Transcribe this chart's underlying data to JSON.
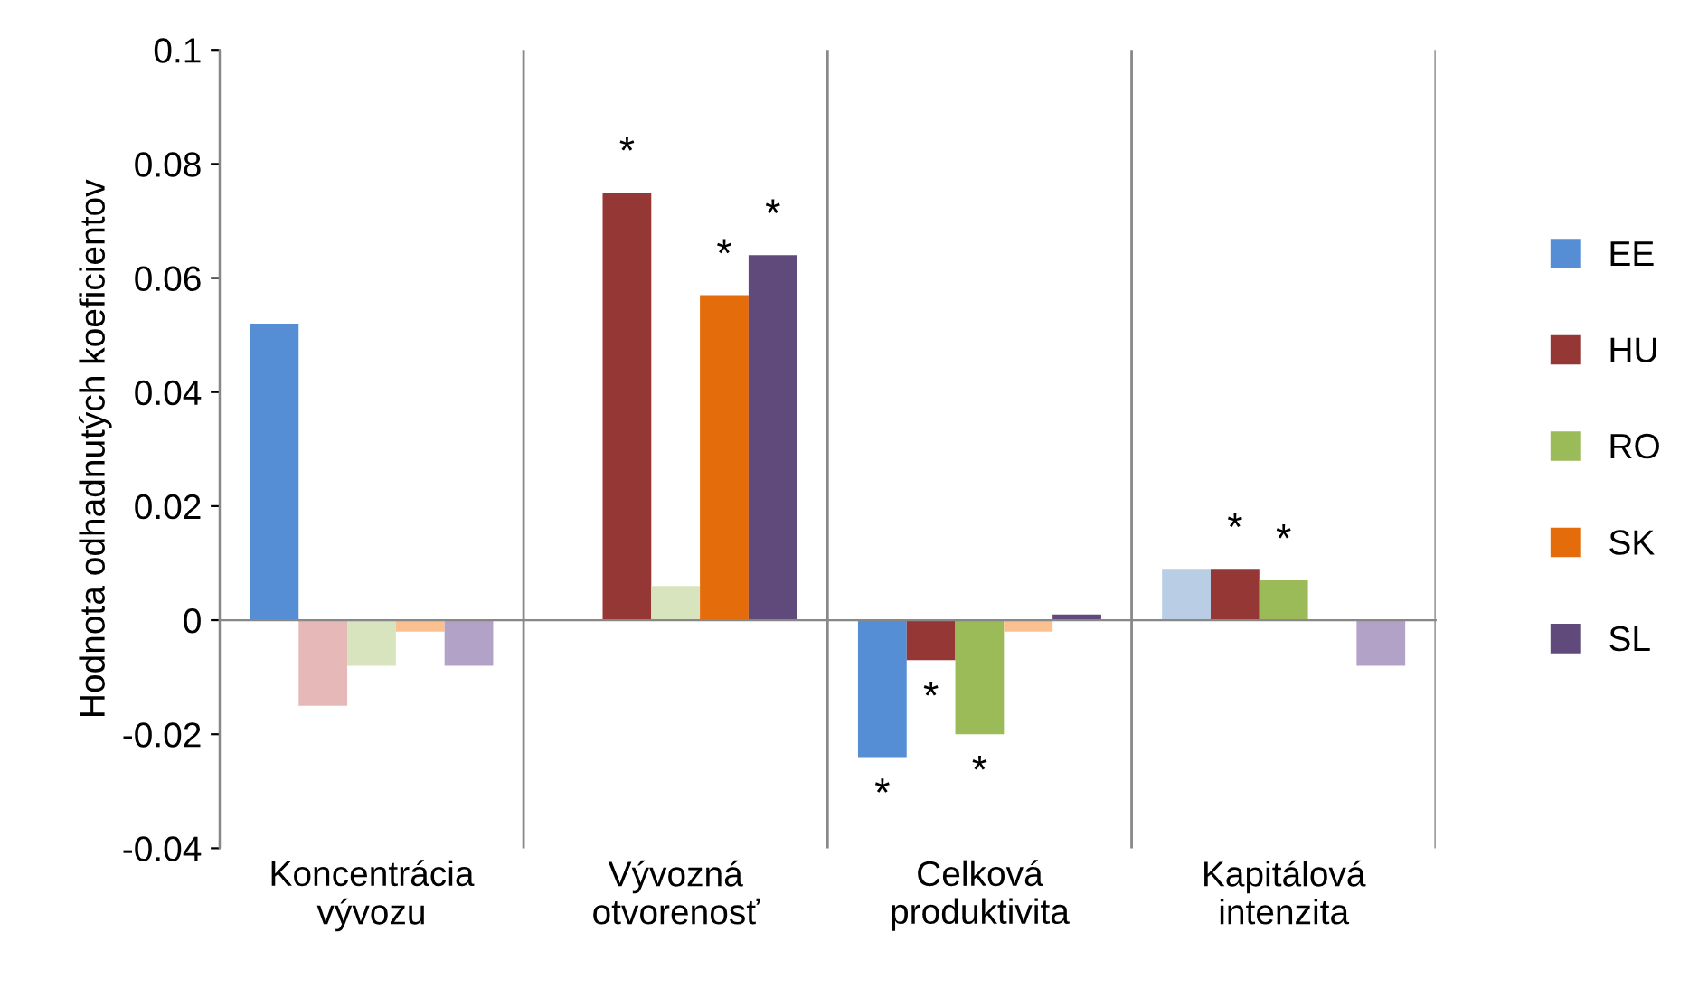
{
  "chart_data": {
    "type": "bar",
    "ylabel": "Hodnota odhadnutých koeficientov",
    "categories": [
      "Koncentrácia\nvývozu",
      "Vývozná\notvorenosť",
      "Celková\nproduktivita",
      "Kapitálová\nintenzita"
    ],
    "series": [
      {
        "name": "EE",
        "color": "#558ed5",
        "colors": [
          "#558ed5",
          "#558ed5",
          "#558ed5",
          "#b9cde5"
        ],
        "values": [
          0.052,
          0,
          -0.024,
          0.009
        ],
        "value_labels": [
          null,
          null,
          "*",
          null
        ]
      },
      {
        "name": "HU",
        "color": "#953735",
        "colors": [
          "#e6b9b8",
          "#953735",
          "#953735",
          "#953735"
        ],
        "values": [
          -0.015,
          0.075,
          -0.007,
          0.009
        ],
        "value_labels": [
          null,
          "*",
          "*",
          "*"
        ]
      },
      {
        "name": "RO",
        "color": "#9bbb59",
        "colors": [
          "#d7e4bd",
          "#d7e4bd",
          "#9bbb59",
          "#9bbb59"
        ],
        "values": [
          -0.008,
          0.006,
          -0.02,
          0.007
        ],
        "value_labels": [
          null,
          null,
          "*",
          "*"
        ]
      },
      {
        "name": "SK",
        "color": "#e46c0a",
        "colors": [
          "#fac090",
          "#e46c0a",
          "#fac090",
          "#e46c0a"
        ],
        "values": [
          -0.002,
          0.057,
          -0.002,
          0
        ],
        "value_labels": [
          null,
          "*",
          null,
          null
        ]
      },
      {
        "name": "SL",
        "color": "#604a7b",
        "colors": [
          "#b3a2c7",
          "#604a7b",
          "#604a7b",
          "#b3a2c7"
        ],
        "values": [
          -0.008,
          0.064,
          0.001,
          -0.008
        ],
        "value_labels": [
          null,
          "*",
          null,
          null
        ]
      }
    ],
    "ylim": [
      -0.04,
      0.1
    ],
    "yticks": [
      -0.04,
      -0.02,
      0,
      0.02,
      0.04,
      0.06,
      0.08,
      0.1
    ],
    "grid": "x",
    "legend": "right"
  }
}
